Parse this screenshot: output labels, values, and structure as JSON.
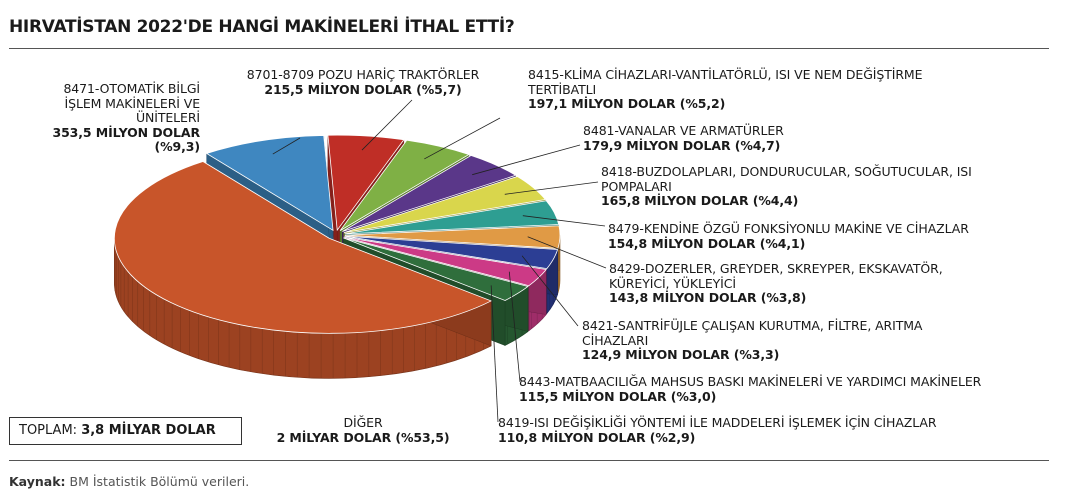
{
  "title": "HIRVATİSTAN 2022'DE HANGİ MAKİNELERİ İTHAL ETTİ?",
  "total": {
    "label": "TOPLAM:",
    "value": "3,8 MİLYAR DOLAR"
  },
  "source": {
    "label": "Kaynak:",
    "text": "BM İstatistik Bölümü verileri."
  },
  "chart_data": {
    "type": "pie",
    "title": "HIRVATİSTAN 2022'DE HANGİ MAKİNELERİ İTHAL ETTİ?",
    "unit": "milyon dolar",
    "slices": [
      {
        "name": "8471-OTOMATİK BİLGİ İŞLEM MAKİNELERİ VE ÜNİTELERİ",
        "name_lines": [
          "8471-OTOMATİK BİLGİ",
          "İŞLEM MAKİNELERİ VE",
          "ÜNİTELERİ"
        ],
        "value": 353.5,
        "percent": 9.3,
        "value_lines": [
          "353,5 MİLYON DOLAR",
          "(%9,3)"
        ],
        "color": "#3f87c0"
      },
      {
        "name": "8701-8709 POZU HARİÇ TRAKTÖRLER",
        "name_lines": [
          "8701-8709 POZU HARİÇ TRAKTÖRLER"
        ],
        "value": 215.5,
        "percent": 5.7,
        "value_lines": [
          "215,5 MİLYON DOLAR (%5,7)"
        ],
        "color": "#bf2e26"
      },
      {
        "name": "8415-KLİMA CİHAZLARI-VANTİLATÖRLÜ, ISI VE NEM DEĞİŞTİRME TERTİBATLI",
        "name_lines": [
          "8415-KLİMA CİHAZLARI-VANTİLATÖRLÜ, ISI VE NEM DEĞİŞTİRME",
          "TERTİBATLI"
        ],
        "value": 197.1,
        "percent": 5.2,
        "value_lines": [
          "197,1 MİLYON DOLAR (%5,2)"
        ],
        "color": "#7fb045"
      },
      {
        "name": "8481-VANALAR VE ARMATÜRLER",
        "name_lines": [
          "8481-VANALAR VE ARMATÜRLER"
        ],
        "value": 179.9,
        "percent": 4.7,
        "value_lines": [
          "179,9 MİLYON DOLAR (%4,7)"
        ],
        "color": "#5a3789"
      },
      {
        "name": "8418-BUZDOLAPLARI, DONDURUCULAR, SOĞUTUCULAR, ISI POMPALARI",
        "name_lines": [
          "8418-BUZDOLAPLARI, DONDURUCULAR, SOĞUTUCULAR, ISI",
          "POMPALARI"
        ],
        "value": 165.8,
        "percent": 4.4,
        "value_lines": [
          "165,8 MİLYON DOLAR (%4,4)"
        ],
        "color": "#d9d64c"
      },
      {
        "name": "8479-KENDİNE ÖZGÜ FONKSİYONLU MAKİNE VE CİHAZLAR",
        "name_lines": [
          "8479-KENDİNE ÖZGÜ FONKSİYONLU MAKİNE VE CİHAZLAR"
        ],
        "value": 154.8,
        "percent": 4.1,
        "value_lines": [
          "154,8 MİLYON DOLAR (%4,1)"
        ],
        "color": "#2e9e92"
      },
      {
        "name": "8429-DOZERLER, GREYDER, SKREYPER, EKSKAVATÖR, KÜREYİCİ, YÜKLEYİCİ",
        "name_lines": [
          "8429-DOZERLER, GREYDER, SKREYPER, EKSKAVATÖR,",
          "KÜREYİCİ, YÜKLEYİCİ"
        ],
        "value": 143.8,
        "percent": 3.8,
        "value_lines": [
          "143,8 MİLYON DOLAR (%3,8)"
        ],
        "color": "#e09a45"
      },
      {
        "name": "8421-SANTRİFÜJLE ÇALIŞAN KURUTMA, FİLTRE, ARITMA CİHAZLARI",
        "name_lines": [
          "8421-SANTRİFÜJLE ÇALIŞAN KURUTMA, FİLTRE, ARITMA",
          "CİHAZLARI"
        ],
        "value": 124.9,
        "percent": 3.3,
        "value_lines": [
          "124,9 MİLYON DOLAR (%3,3)"
        ],
        "color": "#2c3e94"
      },
      {
        "name": "8443-MATBAACILIĞA MAHSUS BASKI MAKİNELERİ VE YARDIMCI MAKİNELER",
        "name_lines": [
          "8443-MATBAACILIĞA MAHSUS BASKI MAKİNELERİ VE YARDIMCI MAKİNELER"
        ],
        "value": 115.5,
        "percent": 3.0,
        "value_lines": [
          "115,5 MİLYON DOLAR (%3,0)"
        ],
        "color": "#cc3a86"
      },
      {
        "name": "8419-ISI DEĞİŞİKLİĞİ YÖNTEMİ İLE MADDELERİ İŞLEMEK İÇİN CİHAZLAR",
        "name_lines": [
          "8419-ISI DEĞİŞİKLİĞİ YÖNTEMİ İLE MADDELERİ İŞLEMEK İÇİN CİHAZLAR"
        ],
        "value": 110.8,
        "percent": 2.9,
        "value_lines": [
          "110,8 MİLYON DOLAR (%2,9)"
        ],
        "color": "#2f6e3c"
      },
      {
        "name": "DİĞER",
        "name_lines": [
          "DİĞER"
        ],
        "value": 2000,
        "percent": 53.5,
        "value_lines": [
          "2 MİLYAR DOLAR (%53,5)"
        ],
        "color": "#c8552a"
      }
    ]
  }
}
